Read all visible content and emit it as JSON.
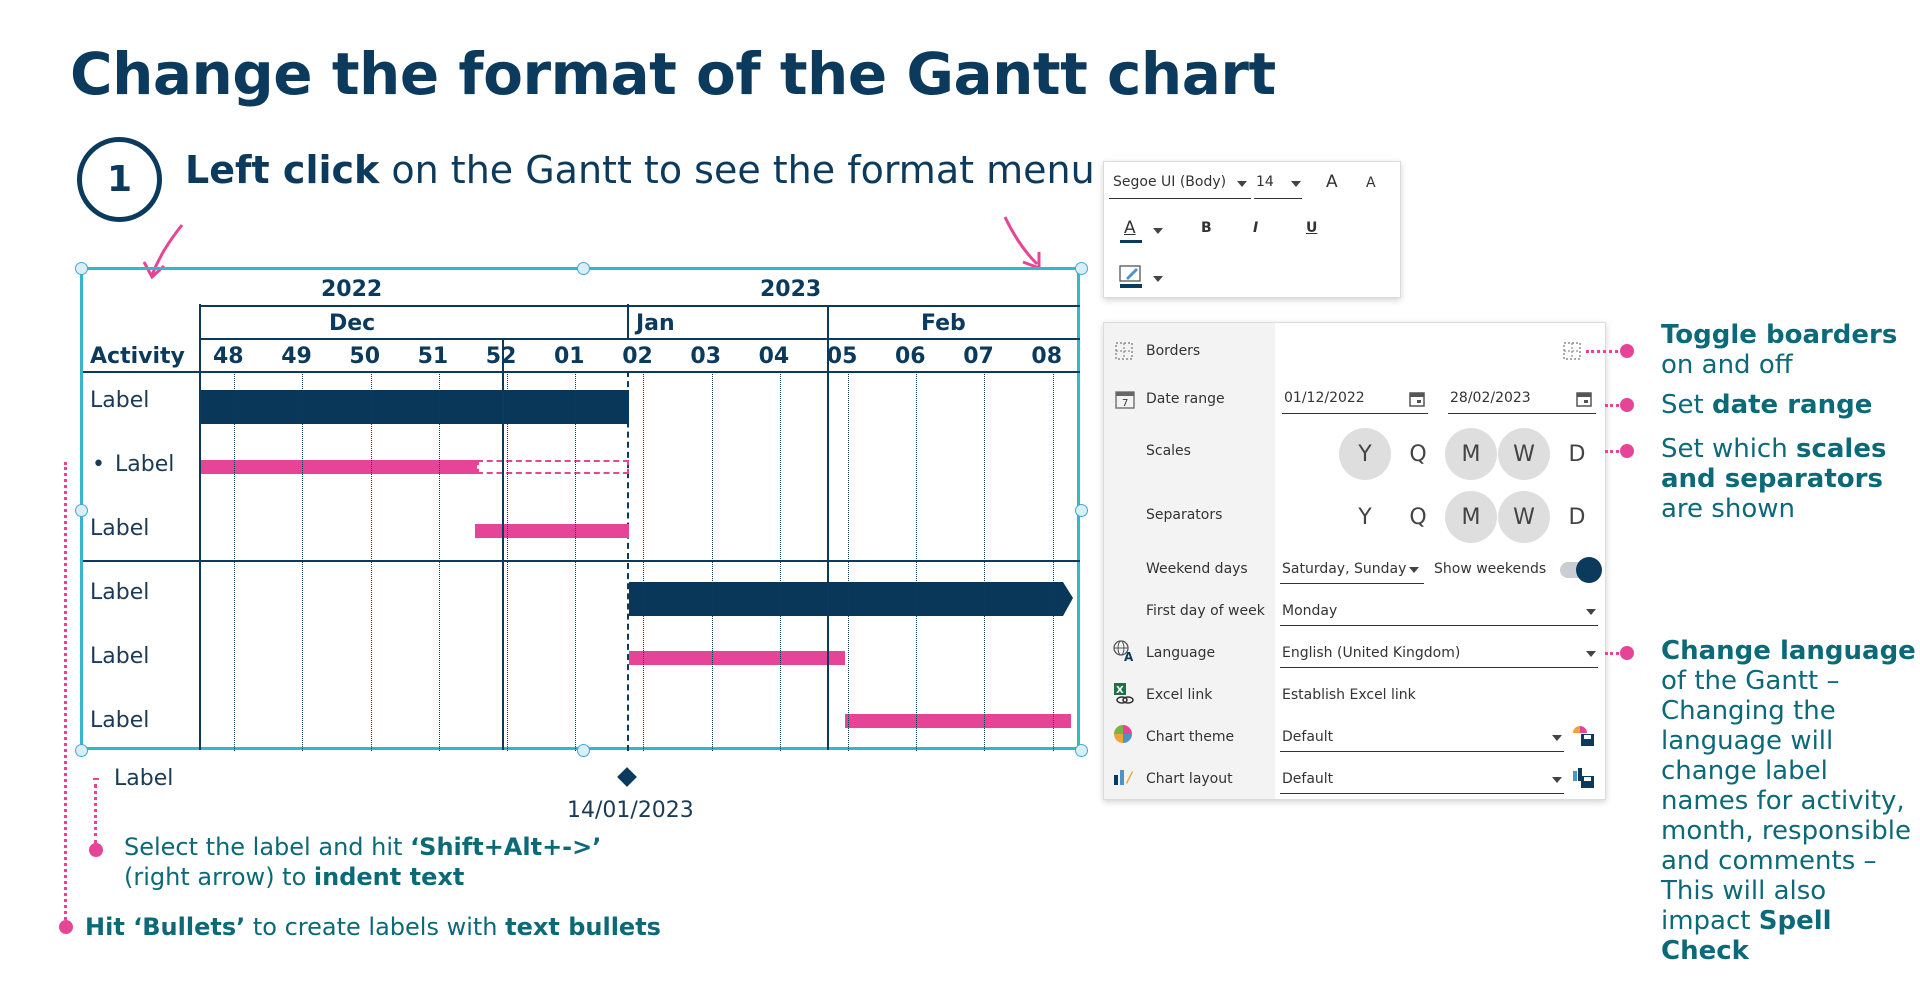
{
  "title": "Change the format of the Gantt chart",
  "step": {
    "number": "1",
    "bold": "Left click",
    "rest": " on the Gantt to see the format menu"
  },
  "gantt": {
    "years": [
      "2022",
      "2023"
    ],
    "months": [
      "Dec",
      "Jan",
      "Feb"
    ],
    "activity_header": "Activity",
    "weeks": [
      "48",
      "49",
      "50",
      "51",
      "52",
      "01",
      "02",
      "03",
      "04",
      "05",
      "06",
      "07",
      "08"
    ],
    "rows": [
      {
        "label": "Label",
        "bullet": ""
      },
      {
        "label": "Label",
        "bullet": "•"
      },
      {
        "label": "Label",
        "bullet": ""
      },
      {
        "label": "Label",
        "bullet": ""
      },
      {
        "label": "Label",
        "bullet": ""
      },
      {
        "label": "Label",
        "bullet": ""
      }
    ],
    "milestone_row_label": "Label",
    "milestone_date": "14/01/2023"
  },
  "font_toolbar": {
    "font_name": "Segoe UI (Body)",
    "font_size": "14",
    "increase_label": "A",
    "decrease_label": "A",
    "bold_label": "B",
    "italic_label": "I",
    "underline_label": "U",
    "font_color_label": "A"
  },
  "format_panel": {
    "borders_label": "Borders",
    "date_range_label": "Date range",
    "date_start": "01/12/2022",
    "date_end": "28/02/2023",
    "scales_label": "Scales",
    "separators_label": "Separators",
    "scale_options": [
      "Y",
      "Q",
      "M",
      "W",
      "D"
    ],
    "weekend_days_label": "Weekend days",
    "weekend_days_value": "Saturday, Sunday",
    "show_weekends_label": "Show weekends",
    "first_day_label": "First day of week",
    "first_day_value": "Monday",
    "language_label": "Language",
    "language_value": "English (United Kingdom)",
    "excel_link_label": "Excel link",
    "excel_link_value": "Establish Excel link",
    "chart_theme_label": "Chart theme",
    "chart_theme_value": "Default",
    "chart_layout_label": "Chart layout",
    "chart_layout_value": "Default"
  },
  "callouts": {
    "borders_bold": "Toggle boarders",
    "borders_rest": "on and off",
    "date_pre": "Set ",
    "date_bold": "date range",
    "scales_pre": "Set which ",
    "scales_bold1": "scales",
    "scales_bold2": "and separators",
    "scales_rest": "are shown",
    "language_bold": "Change language",
    "language_line1": "of the Gantt –",
    "language_line2": "Changing the",
    "language_line3": "language will",
    "language_line4": "change label",
    "language_line5": "names for activity,",
    "language_line6": "month, responsible",
    "language_line7": "and comments –",
    "language_line8": "This will also",
    "language_line9_pre": "impact ",
    "language_line9_bold": "Spell Check"
  },
  "notes": {
    "indent_pre": "Select the label and hit ",
    "indent_bold": "‘Shift+Alt+->’",
    "indent_line2_pre": "(right arrow) to ",
    "indent_line2_bold": "indent text",
    "bullets_bold1": "Hit ‘Bullets’",
    "bullets_mid": " to create labels with ",
    "bullets_bold2": "text bullets"
  },
  "colors": {
    "navy": "#08375a",
    "pink": "#e64597",
    "teal": "#0c6a78",
    "border_teal": "#35b7c9"
  }
}
